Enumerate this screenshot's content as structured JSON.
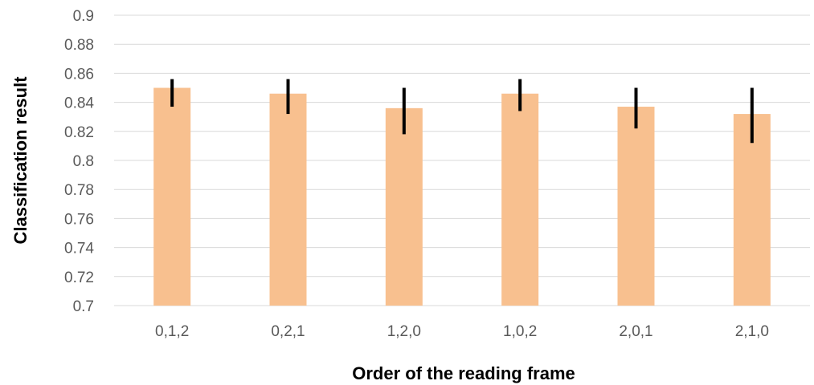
{
  "chart_data": {
    "type": "bar",
    "title": "",
    "xlabel": "Order of the reading frame",
    "ylabel": "Classification result",
    "categories": [
      "0,1,2",
      "0,2,1",
      "1,2,0",
      "1,0,2",
      "2,0,1",
      "2,1,0"
    ],
    "values": [
      0.85,
      0.846,
      0.836,
      0.846,
      0.837,
      0.832
    ],
    "error_low": [
      0.837,
      0.832,
      0.818,
      0.834,
      0.822,
      0.812
    ],
    "error_high": [
      0.856,
      0.856,
      0.85,
      0.856,
      0.85,
      0.85
    ],
    "ylim": [
      0.7,
      0.9
    ],
    "yticks": [
      "0.7",
      "0.72",
      "0.74",
      "0.76",
      "0.78",
      "0.8",
      "0.82",
      "0.84",
      "0.86",
      "0.88",
      "0.9"
    ],
    "grid": true,
    "legend": "none",
    "bar_color": "#f8c08f",
    "error_color": "#000000"
  }
}
